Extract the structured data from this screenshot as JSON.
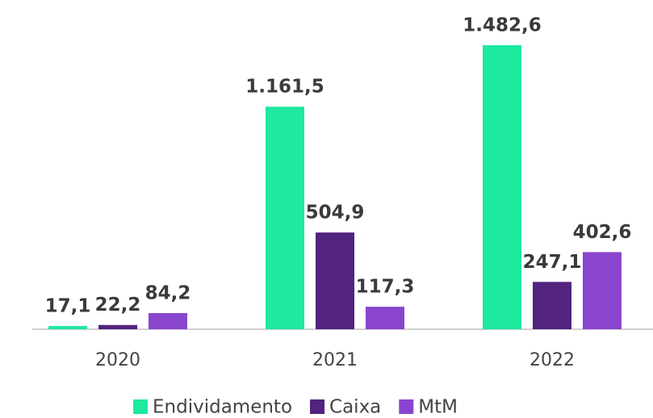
{
  "chart_data": {
    "type": "bar",
    "categories": [
      "2020",
      "2021",
      "2022"
    ],
    "series": [
      {
        "name": "Endividamento",
        "color": "#1ee99f",
        "values": [
          17.1,
          1161.5,
          1482.6
        ],
        "value_labels": [
          "17,1",
          "1.161,5",
          "1.482,6"
        ]
      },
      {
        "name": "Caixa",
        "color": "#52237f",
        "values": [
          22.2,
          504.9,
          247.1
        ],
        "value_labels": [
          "22,2",
          "504,9",
          "247,1"
        ]
      },
      {
        "name": "MtM",
        "color": "#8a45cf",
        "values": [
          84.2,
          117.3,
          402.6
        ],
        "value_labels": [
          "84,2",
          "117,3",
          "402,6"
        ]
      }
    ],
    "legend": "bottom"
  }
}
